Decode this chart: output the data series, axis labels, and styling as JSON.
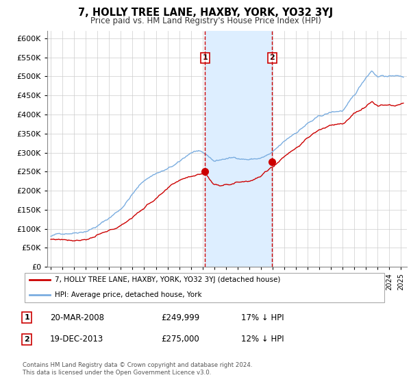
{
  "title": "7, HOLLY TREE LANE, HAXBY, YORK, YO32 3YJ",
  "subtitle": "Price paid vs. HM Land Registry's House Price Index (HPI)",
  "legend_label_red": "7, HOLLY TREE LANE, HAXBY, YORK, YO32 3YJ (detached house)",
  "legend_label_blue": "HPI: Average price, detached house, York",
  "annotation1_label": "1",
  "annotation1_date": "20-MAR-2008",
  "annotation1_price": "£249,999",
  "annotation1_hpi": "17% ↓ HPI",
  "annotation2_label": "2",
  "annotation2_date": "19-DEC-2013",
  "annotation2_price": "£275,000",
  "annotation2_hpi": "12% ↓ HPI",
  "footer1": "Contains HM Land Registry data © Crown copyright and database right 2024.",
  "footer2": "This data is licensed under the Open Government Licence v3.0.",
  "sale1_x": 2008.22,
  "sale1_y": 249999,
  "sale2_x": 2013.97,
  "sale2_y": 275000,
  "vline1_x": 2008.22,
  "vline2_x": 2013.97,
  "shade_color": "#ddeeff",
  "vline_color": "#cc0000",
  "red_line_color": "#cc0000",
  "blue_line_color": "#7aade0",
  "ylim": [
    0,
    620000
  ],
  "xlim_start": 1994.7,
  "xlim_end": 2025.5
}
